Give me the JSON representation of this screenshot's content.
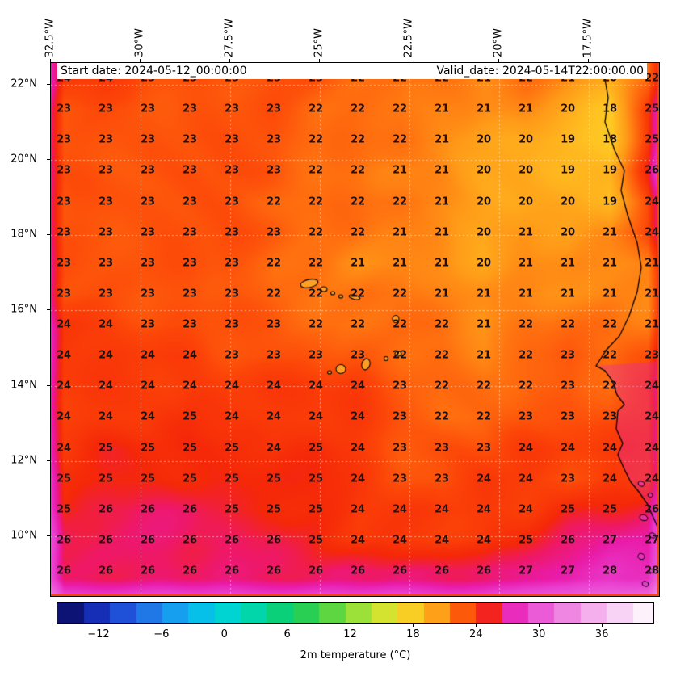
{
  "header": {
    "start_date": "Start date: 2024-05-12_00:00:00",
    "valid_date": "Valid_date: 2024-05-14T22:00:00.00"
  },
  "axes": {
    "longitude_labels": [
      "32.5°W",
      "30°W",
      "27.5°W",
      "25°W",
      "22.5°W",
      "20°W",
      "17.5°W"
    ],
    "latitude_labels": [
      "22°N",
      "20°N",
      "18°N",
      "16°N",
      "14°N",
      "12°N",
      "10°N"
    ]
  },
  "colorbar": {
    "label": "2m temperature (°C)",
    "tick_labels": [
      "−12",
      "−6",
      "0",
      "6",
      "12",
      "18",
      "24",
      "30",
      "36"
    ],
    "tick_values": [
      -12,
      -6,
      0,
      6,
      12,
      18,
      24,
      30,
      36
    ],
    "range": [
      -16,
      41
    ]
  },
  "chart_data": {
    "type": "heatmap",
    "variable": "2m temperature",
    "unit": "°C",
    "x_tick_labels": [
      "32.5°W",
      "30°W",
      "27.5°W",
      "25°W",
      "22.5°W",
      "20°W",
      "17.5°W"
    ],
    "y_tick_labels": [
      "22°N",
      "20°N",
      "18°N",
      "16°N",
      "14°N",
      "12°N",
      "10°N"
    ],
    "colorbar_ticks": [
      -12,
      -6,
      0,
      6,
      12,
      18,
      24,
      30,
      36
    ],
    "value_range": [
      -16,
      41
    ],
    "grid_values": [
      [
        24,
        24,
        23,
        23,
        23,
        23,
        23,
        22,
        22,
        22,
        21,
        22,
        21,
        20,
        22
      ],
      [
        23,
        23,
        23,
        23,
        23,
        23,
        22,
        22,
        22,
        21,
        21,
        21,
        20,
        18,
        25
      ],
      [
        23,
        23,
        23,
        23,
        23,
        23,
        22,
        22,
        22,
        21,
        20,
        20,
        19,
        18,
        25
      ],
      [
        23,
        23,
        23,
        23,
        23,
        23,
        22,
        22,
        21,
        21,
        20,
        20,
        19,
        19,
        26
      ],
      [
        23,
        23,
        23,
        23,
        23,
        22,
        22,
        22,
        22,
        21,
        20,
        20,
        20,
        19,
        24
      ],
      [
        23,
        23,
        23,
        23,
        23,
        23,
        22,
        22,
        21,
        21,
        20,
        21,
        20,
        21,
        24
      ],
      [
        23,
        23,
        23,
        23,
        23,
        22,
        22,
        21,
        21,
        21,
        20,
        21,
        21,
        21,
        21
      ],
      [
        23,
        23,
        23,
        23,
        23,
        22,
        22,
        22,
        22,
        21,
        21,
        21,
        21,
        21,
        21
      ],
      [
        24,
        24,
        23,
        23,
        23,
        23,
        22,
        22,
        22,
        22,
        21,
        22,
        22,
        22,
        21
      ],
      [
        24,
        24,
        24,
        24,
        23,
        23,
        23,
        23,
        22,
        22,
        21,
        22,
        23,
        22,
        23
      ],
      [
        24,
        24,
        24,
        24,
        24,
        24,
        24,
        24,
        23,
        22,
        22,
        22,
        23,
        22,
        24
      ],
      [
        24,
        24,
        24,
        25,
        24,
        24,
        24,
        24,
        23,
        22,
        22,
        23,
        23,
        23,
        24
      ],
      [
        24,
        25,
        25,
        25,
        25,
        24,
        25,
        24,
        23,
        23,
        23,
        24,
        24,
        24,
        24
      ],
      [
        25,
        25,
        25,
        25,
        25,
        25,
        25,
        24,
        23,
        23,
        24,
        24,
        23,
        24,
        24
      ],
      [
        25,
        26,
        26,
        26,
        25,
        25,
        25,
        24,
        24,
        24,
        24,
        24,
        25,
        25,
        26
      ],
      [
        26,
        26,
        26,
        26,
        26,
        26,
        25,
        24,
        24,
        24,
        24,
        25,
        26,
        27,
        27
      ],
      [
        26,
        26,
        26,
        26,
        26,
        26,
        26,
        26,
        26,
        26,
        26,
        27,
        27,
        28,
        28
      ]
    ],
    "colormap_stops": [
      [
        -16,
        "#08084e"
      ],
      [
        -13.5,
        "#101e9b"
      ],
      [
        -11,
        "#1b3fd0"
      ],
      [
        -8.5,
        "#2364e0"
      ],
      [
        -6,
        "#1e8cec"
      ],
      [
        -3.5,
        "#0cb2f0"
      ],
      [
        -1,
        "#00cfe4"
      ],
      [
        1.5,
        "#00d9c0"
      ],
      [
        4,
        "#00d494"
      ],
      [
        6.5,
        "#12cd5e"
      ],
      [
        9,
        "#3ed146"
      ],
      [
        11.5,
        "#7ddc3e"
      ],
      [
        14,
        "#b9e634"
      ],
      [
        16.5,
        "#eee02b"
      ],
      [
        18.5,
        "#ffc422"
      ],
      [
        20.5,
        "#ff9b18"
      ],
      [
        22,
        "#ff6e0f"
      ],
      [
        23.5,
        "#fc4408"
      ],
      [
        25,
        "#f52808"
      ],
      [
        26,
        "#ee1866"
      ],
      [
        27,
        "#e91ba8"
      ],
      [
        28.5,
        "#e93ed0"
      ],
      [
        31,
        "#ec68da"
      ],
      [
        33.5,
        "#f193e5"
      ],
      [
        36,
        "#f6bcef"
      ],
      [
        38.5,
        "#fbdef8"
      ],
      [
        41,
        "#fffaff"
      ]
    ]
  }
}
